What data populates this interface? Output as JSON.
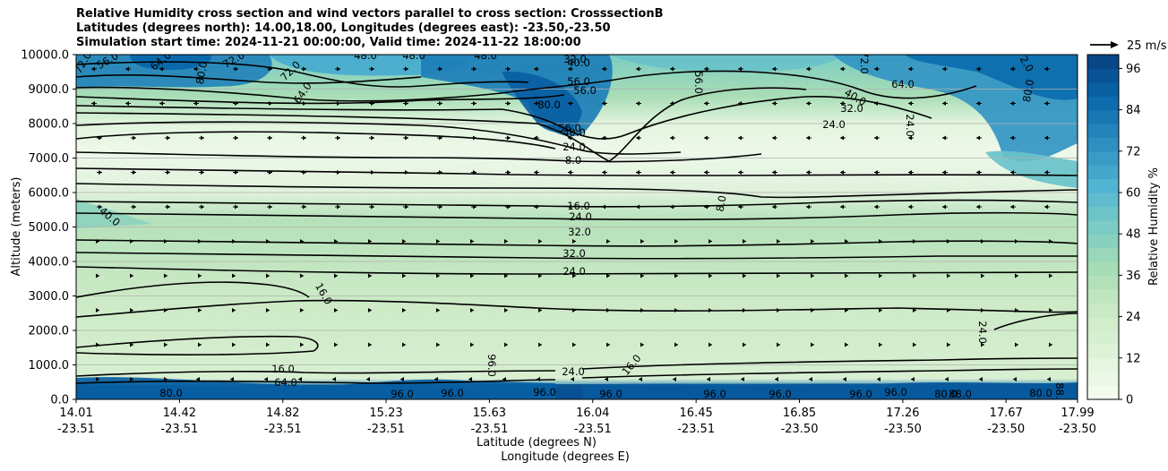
{
  "title_lines": [
    "Relative Humidity cross section and wind vectors parallel to cross section: CrosssectionB",
    "Latitudes (degrees north): 14.00,18.00, Longitudes (degrees east): -23.50,-23.50",
    "Simulation start time: 2024-11-21 00:00:00, Valid time: 2024-11-22 18:00:00"
  ],
  "chart_data": {
    "type": "contourf_cross_section",
    "title": "Relative Humidity cross section and wind vectors parallel to cross section: CrosssectionB",
    "ylabel": "Altitude (meters)",
    "xlabel_line1": "Latitude (degrees N)",
    "xlabel_line2": "Longitude (degrees E)",
    "ylim": [
      0,
      10000
    ],
    "yticks": [
      "0.0",
      "1000.0",
      "2000.0",
      "3000.0",
      "4000.0",
      "5000.0",
      "6000.0",
      "7000.0",
      "8000.0",
      "9000.0",
      "10000.0"
    ],
    "xticks": [
      {
        "lat": "14.01",
        "lon": "-23.51"
      },
      {
        "lat": "14.42",
        "lon": "-23.51"
      },
      {
        "lat": "14.82",
        "lon": "-23.51"
      },
      {
        "lat": "15.23",
        "lon": "-23.51"
      },
      {
        "lat": "15.63",
        "lon": "-23.51"
      },
      {
        "lat": "16.04",
        "lon": "-23.51"
      },
      {
        "lat": "16.45",
        "lon": "-23.51"
      },
      {
        "lat": "16.85",
        "lon": "-23.50"
      },
      {
        "lat": "17.26",
        "lon": "-23.50"
      },
      {
        "lat": "17.67",
        "lon": "-23.50"
      },
      {
        "lat": "17.99",
        "lon": "-23.50"
      }
    ],
    "colorbar": {
      "label": "Relative Humidity %",
      "range": [
        0,
        100
      ],
      "step": 4,
      "ticks": [
        "0",
        "12",
        "24",
        "36",
        "48",
        "60",
        "72",
        "84",
        "96"
      ]
    },
    "quiver_key": "25 m/s",
    "contour_labels": [
      "72.0",
      "56.0",
      "64.0",
      "72.0",
      "80.0",
      "72.0",
      "64.0",
      "48.0",
      "48.0",
      "48.0",
      "32.0",
      "40.0",
      "56.0",
      "56.0",
      "80.0",
      "56.0",
      "40.0",
      "24.0",
      "8.0",
      "64.0",
      "40.0",
      "32.0",
      "24.0",
      "24.0",
      "56.0",
      "80.0",
      "72.0",
      "72.0",
      "16.0",
      "24.0",
      "32.0",
      "32.0",
      "24.0",
      "8.0",
      "40.0",
      "16.0",
      "24.0",
      "16.0",
      "24.0",
      "16.0",
      "96.0",
      "96.0",
      "80.0",
      "96.0",
      "80.0",
      "88.0",
      "96.0",
      "96.0",
      "96.0",
      "96.0",
      "96.0",
      "96.0",
      "80.0",
      "88.0",
      "64.0"
    ],
    "rh_profile": [
      {
        "alt": 0,
        "rh": 96
      },
      {
        "alt": 300,
        "rh": 90
      },
      {
        "alt": 600,
        "rh": 28
      },
      {
        "alt": 1500,
        "rh": 24
      },
      {
        "alt": 2500,
        "rh": 20
      },
      {
        "alt": 3500,
        "rh": 24
      },
      {
        "alt": 4500,
        "rh": 32
      },
      {
        "alt": 5500,
        "rh": 16
      },
      {
        "alt": 6500,
        "rh": 8
      },
      {
        "alt": 7500,
        "rh": 16
      },
      {
        "alt": 8500,
        "rh": 48
      },
      {
        "alt": 9500,
        "rh": 72
      }
    ]
  }
}
